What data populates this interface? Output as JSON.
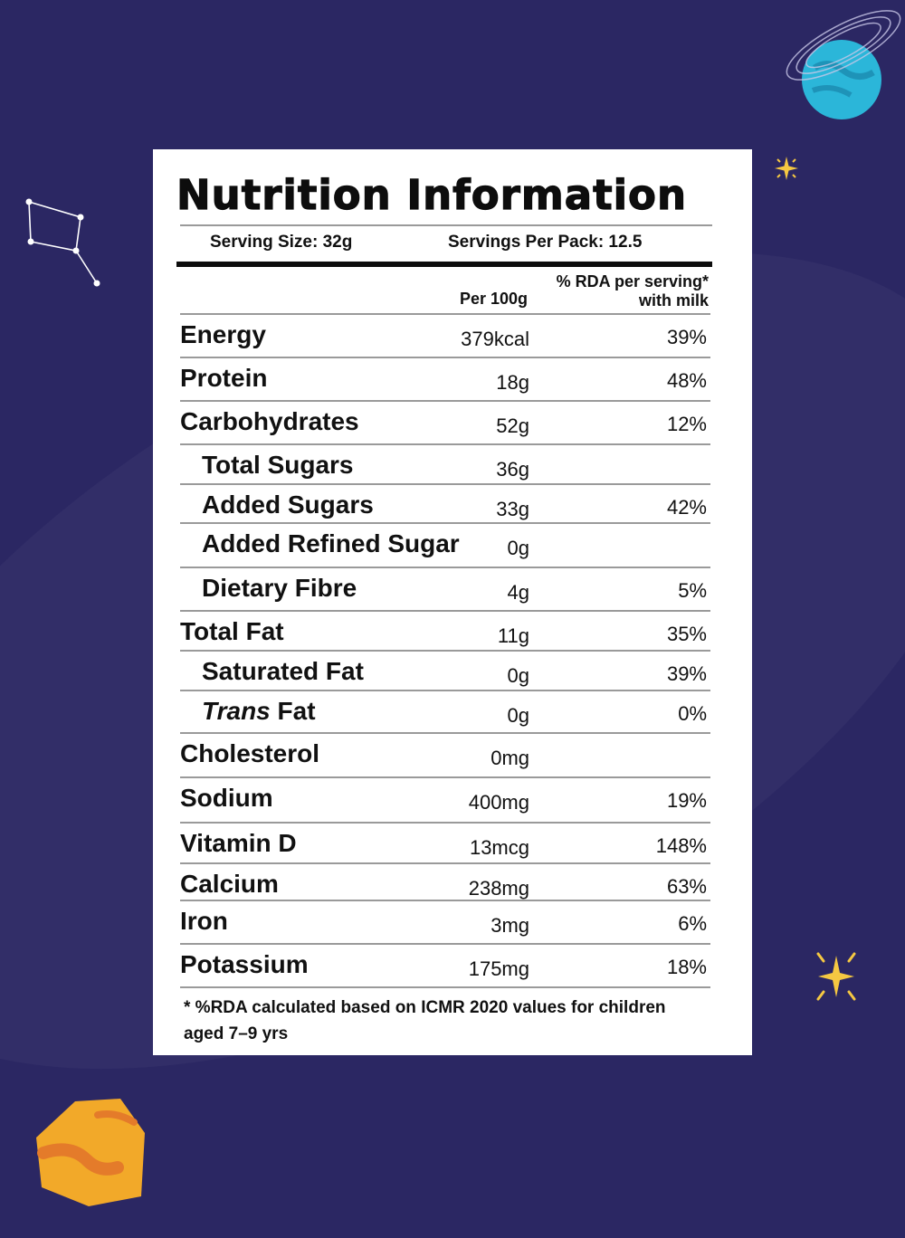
{
  "label": {
    "title": "Nutrition Information",
    "serving_size": "Serving Size: 32g",
    "servings_per_pack": "Servings Per Pack: 12.5",
    "col_per100": "Per 100g",
    "col_rda_line1": "% RDA per serving*",
    "col_rda_line2": "with milk",
    "rows": [
      {
        "name": "Energy",
        "per100": "379kcal",
        "rda": "39%"
      },
      {
        "name": "Protein",
        "per100": "18g",
        "rda": "48%"
      },
      {
        "name": "Carbohydrates",
        "per100": "52g",
        "rda": "12%"
      },
      {
        "name": "Total Sugars",
        "per100": "36g",
        "rda": ""
      },
      {
        "name": "Added Sugars",
        "per100": "33g",
        "rda": "42%"
      },
      {
        "name": "Added Refined Sugar",
        "per100": "0g",
        "rda": ""
      },
      {
        "name": "Dietary Fibre",
        "per100": "4g",
        "rda": "5%"
      },
      {
        "name": "Total Fat",
        "per100": "11g",
        "rda": "35%"
      },
      {
        "name": "Saturated Fat",
        "per100": "0g",
        "rda": "39%"
      },
      {
        "name_italic": "Trans",
        "name_rest": " Fat",
        "per100": "0g",
        "rda": "0%"
      },
      {
        "name": "Cholesterol",
        "per100": "0mg",
        "rda": ""
      },
      {
        "name": "Sodium",
        "per100": "400mg",
        "rda": "19%"
      },
      {
        "name": "Vitamin D",
        "per100": "13mcg",
        "rda": "148%"
      },
      {
        "name": "Calcium",
        "per100": "238mg",
        "rda": "63%"
      },
      {
        "name": "Iron",
        "per100": "3mg",
        "rda": "6%"
      },
      {
        "name": "Potassium",
        "per100": "175mg",
        "rda": "18%"
      }
    ],
    "footnote": "* %RDA calculated based on ICMR 2020 values for children aged 7–9 yrs"
  },
  "decorations": {
    "background_color": "#2b2763",
    "planet_blue_color": "#2bb6d9",
    "planet_orange_color": "#f2a929",
    "star_color": "#f5c842",
    "icons": [
      "constellation-icon",
      "blue-planet-icon",
      "sparkle-star-icon",
      "orange-planet-icon"
    ]
  }
}
